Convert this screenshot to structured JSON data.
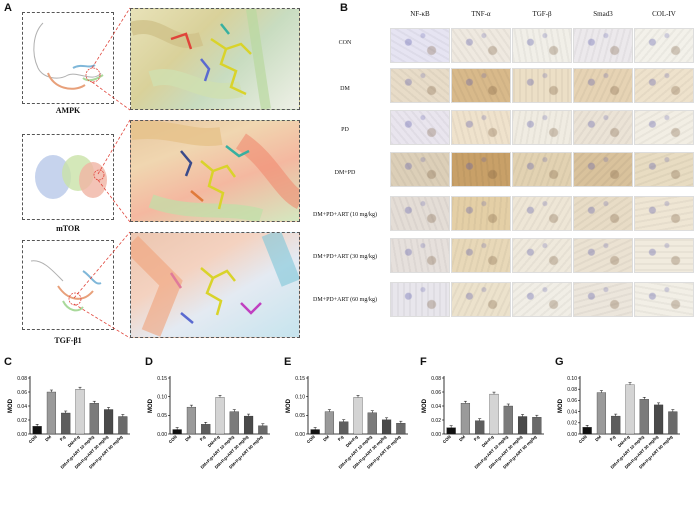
{
  "panels": {
    "A": "A",
    "B": "B",
    "C": "C",
    "D": "D",
    "E": "E",
    "F": "F",
    "G": "G"
  },
  "docking": [
    {
      "protein": "AMPK"
    },
    {
      "protein": "mTOR"
    },
    {
      "protein": "TGF-β1"
    }
  ],
  "ihc": {
    "columns": [
      "NF-κB",
      "TNF-α",
      "TGF-β",
      "Smad3",
      "COL-IV"
    ],
    "rows": [
      "CON",
      "DM",
      "PD",
      "DM+PD",
      "DM+PD+ART (10 mg/kg)",
      "DM+PD+ART (30 mg/kg)",
      "DM+PD+ART (60 mg/kg)"
    ]
  },
  "chart_data": [
    {
      "type": "bar",
      "panel": "C",
      "ylabel": "MOD",
      "ylim": [
        0,
        0.08
      ],
      "yticks": [
        "0.00",
        "0.02",
        "0.04",
        "0.06",
        "0.08"
      ],
      "categories": [
        "CON",
        "DM",
        "P.g",
        "DM+P.g",
        "DM+P.g+ART 10 mg/kg",
        "DM+P.g+ART 30 mg/kg",
        "DM+P.g+ART 60 mg/kg"
      ],
      "values": [
        0.011,
        0.06,
        0.03,
        0.064,
        0.044,
        0.035,
        0.025
      ]
    },
    {
      "type": "bar",
      "panel": "D",
      "ylabel": "MOD",
      "ylim": [
        0,
        0.15
      ],
      "yticks": [
        "0.00",
        "0.05",
        "0.10",
        "0.15"
      ],
      "categories": [
        "CON",
        "DM",
        "P.g",
        "DM+P.g",
        "DM+P.g+ART 10 mg/kg",
        "DM+P.g+ART 30 mg/kg",
        "DM+P.g+ART 60 mg/kg"
      ],
      "values": [
        0.012,
        0.072,
        0.026,
        0.098,
        0.06,
        0.048,
        0.022
      ]
    },
    {
      "type": "bar",
      "panel": "E",
      "ylabel": "MOD",
      "ylim": [
        0,
        0.15
      ],
      "yticks": [
        "0.00",
        "0.05",
        "0.10",
        "0.15"
      ],
      "categories": [
        "CON",
        "DM",
        "P.g",
        "DM+P.g",
        "DM+P.g+ART 10 mg/kg",
        "DM+P.g+ART 30 mg/kg",
        "DM+P.g+ART 60 mg/kg"
      ],
      "values": [
        0.012,
        0.06,
        0.033,
        0.098,
        0.057,
        0.038,
        0.029
      ]
    },
    {
      "type": "bar",
      "panel": "F",
      "ylabel": "MOD",
      "ylim": [
        0,
        0.08
      ],
      "yticks": [
        "0.00",
        "0.02",
        "0.04",
        "0.06",
        "0.08"
      ],
      "categories": [
        "CON",
        "DM",
        "P.g",
        "DM+P.g",
        "DM+P.g+ART 10 mg/kg",
        "DM+P.g+ART 30 mg/kg",
        "DM+P.g+ART 60 mg/kg"
      ],
      "values": [
        0.009,
        0.044,
        0.019,
        0.057,
        0.04,
        0.025,
        0.024
      ]
    },
    {
      "type": "bar",
      "panel": "G",
      "ylabel": "MOD",
      "ylim": [
        0,
        0.1
      ],
      "yticks": [
        "0.00",
        "0.02",
        "0.04",
        "0.06",
        "0.08",
        "0.10"
      ],
      "categories": [
        "CON",
        "DM",
        "P.g",
        "DM+P.g",
        "DM+P.g+ART 10 mg/kg",
        "DM+P.g+ART 30 mg/kg",
        "DM+P.g+ART 60 mg/kg"
      ],
      "values": [
        0.012,
        0.074,
        0.032,
        0.088,
        0.062,
        0.052,
        0.04
      ]
    }
  ],
  "colors": {
    "bars": [
      "#111111",
      "#9a9a9a",
      "#5e5e5e",
      "#d4d4d4",
      "#7b7b7b",
      "#4a4a4a",
      "#6a6a6a"
    ],
    "zoom_link": "#e0443a"
  }
}
